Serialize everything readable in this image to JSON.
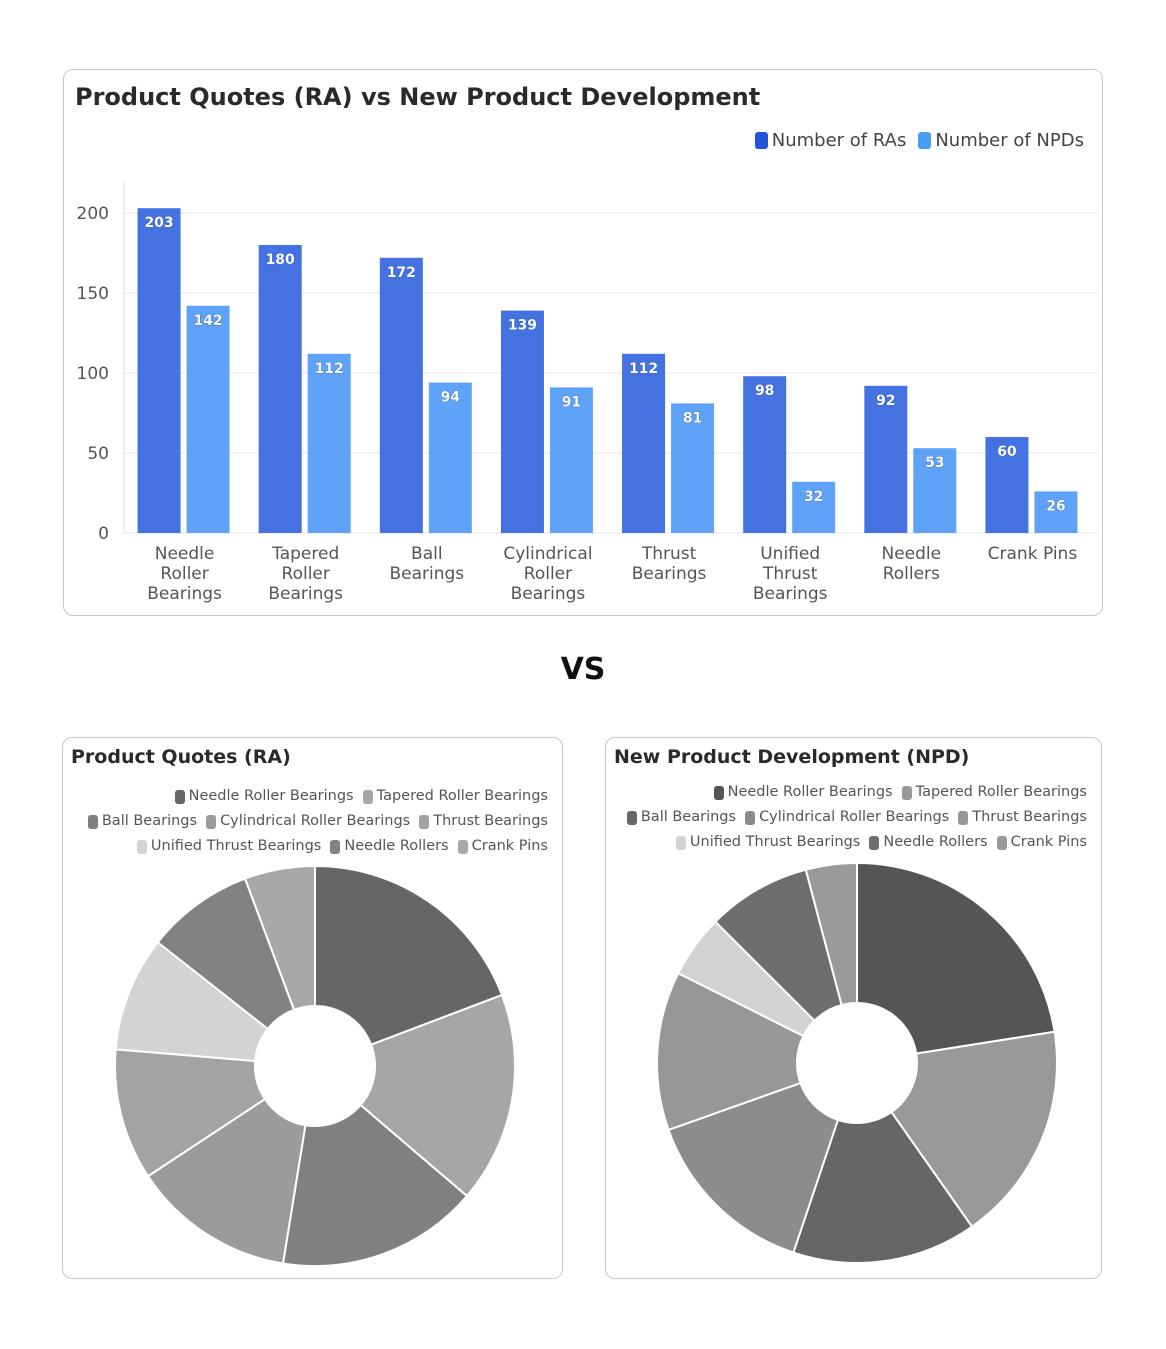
{
  "bar_chart": {
    "title": "Product Quotes (RA) vs New Product Development"
  },
  "vs_label": "VS",
  "pie_ra": {
    "title": "Product Quotes (RA)"
  },
  "pie_npd": {
    "title": "New Product Development (NPD)"
  },
  "colors": {
    "ra_blue": "#4472e0",
    "npd_blue": "#5ea3f7",
    "legend_ra": "#1f55d6",
    "legend_npd": "#4a9cf5"
  },
  "chart_data": [
    {
      "type": "bar",
      "title": "Product Quotes (RA) vs New Product Development",
      "categories": [
        "Needle Roller Bearings",
        "Tapered Roller Bearings",
        "Ball Bearings",
        "Cylindrical Roller Bearings",
        "Thrust Bearings",
        "Unified Thrust Bearings",
        "Needle Rollers",
        "Crank Pins"
      ],
      "category_lines": [
        [
          "Needle",
          "Roller",
          "Bearings"
        ],
        [
          "Tapered",
          "Roller",
          "Bearings"
        ],
        [
          "Ball",
          "Bearings"
        ],
        [
          "Cylindrical",
          "Roller",
          "Bearings"
        ],
        [
          "Thrust",
          "Bearings"
        ],
        [
          "Unified",
          "Thrust",
          "Bearings"
        ],
        [
          "Needle",
          "Rollers"
        ],
        [
          "Crank Pins"
        ]
      ],
      "series": [
        {
          "name": "Number of RAs",
          "color": "#4472e0",
          "values": [
            203,
            180,
            172,
            139,
            112,
            98,
            92,
            60
          ]
        },
        {
          "name": "Number of NPDs",
          "color": "#5ea3f7",
          "values": [
            142,
            112,
            94,
            91,
            81,
            32,
            53,
            26
          ]
        }
      ],
      "yticks": [
        0,
        50,
        100,
        150,
        200
      ],
      "ylim": [
        0,
        220
      ],
      "grid": true,
      "legend": "top-right",
      "data_labels": true
    },
    {
      "type": "pie",
      "title": "Product Quotes (RA)",
      "donut": true,
      "labels": [
        "Needle Roller Bearings",
        "Tapered Roller Bearings",
        "Ball Bearings",
        "Cylindrical Roller Bearings",
        "Thrust Bearings",
        "Unified Thrust Bearings",
        "Needle Rollers",
        "Crank Pins"
      ],
      "values": [
        203,
        180,
        172,
        139,
        112,
        98,
        92,
        60
      ],
      "colors": [
        "#666666",
        "#a6a6a6",
        "#808080",
        "#9b9b9b",
        "#a3a3a3",
        "#d3d3d3",
        "#828282",
        "#a8a8a8"
      ],
      "legend": "top-right"
    },
    {
      "type": "pie",
      "title": "New Product Development (NPD)",
      "donut": true,
      "labels": [
        "Needle Roller Bearings",
        "Tapered Roller Bearings",
        "Ball Bearings",
        "Cylindrical Roller Bearings",
        "Thrust Bearings",
        "Unified Thrust Bearings",
        "Needle Rollers",
        "Crank Pins"
      ],
      "values": [
        142,
        112,
        94,
        91,
        81,
        32,
        53,
        26
      ],
      "colors": [
        "#555555",
        "#999999",
        "#666666",
        "#8c8c8c",
        "#979797",
        "#d3d3d3",
        "#6e6e6e",
        "#9a9a9a"
      ],
      "legend": "top-right"
    }
  ]
}
